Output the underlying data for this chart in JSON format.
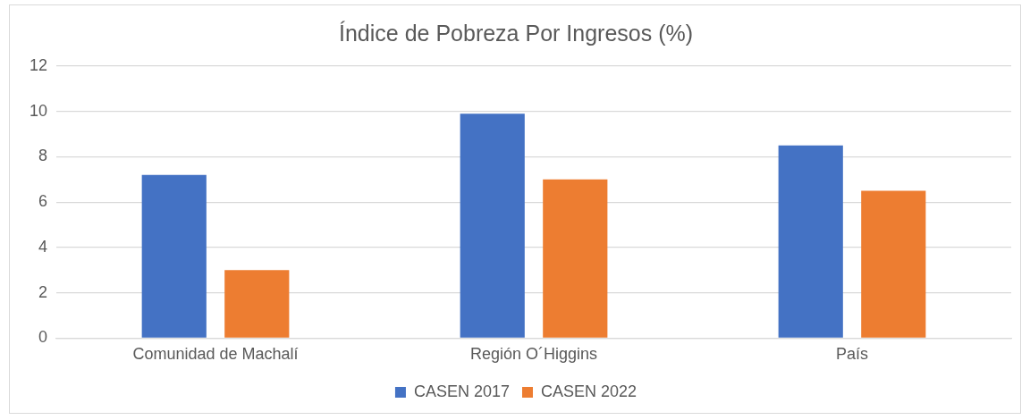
{
  "chart_data": {
    "type": "bar",
    "title": "Índice de Pobreza Por Ingresos (%)",
    "categories": [
      "Comunidad de Machalí",
      "Región O´Higgins",
      "País"
    ],
    "series": [
      {
        "name": "CASEN 2017",
        "color": "#4472c4",
        "values": [
          7.2,
          9.9,
          8.5
        ]
      },
      {
        "name": "CASEN 2022",
        "color": "#ed7d31",
        "values": [
          3.0,
          7.0,
          6.5
        ]
      }
    ],
    "ylim": [
      0,
      12
    ],
    "yticks": [
      0,
      2,
      4,
      6,
      8,
      10,
      12
    ],
    "grid": "y",
    "legend": "bottom"
  }
}
